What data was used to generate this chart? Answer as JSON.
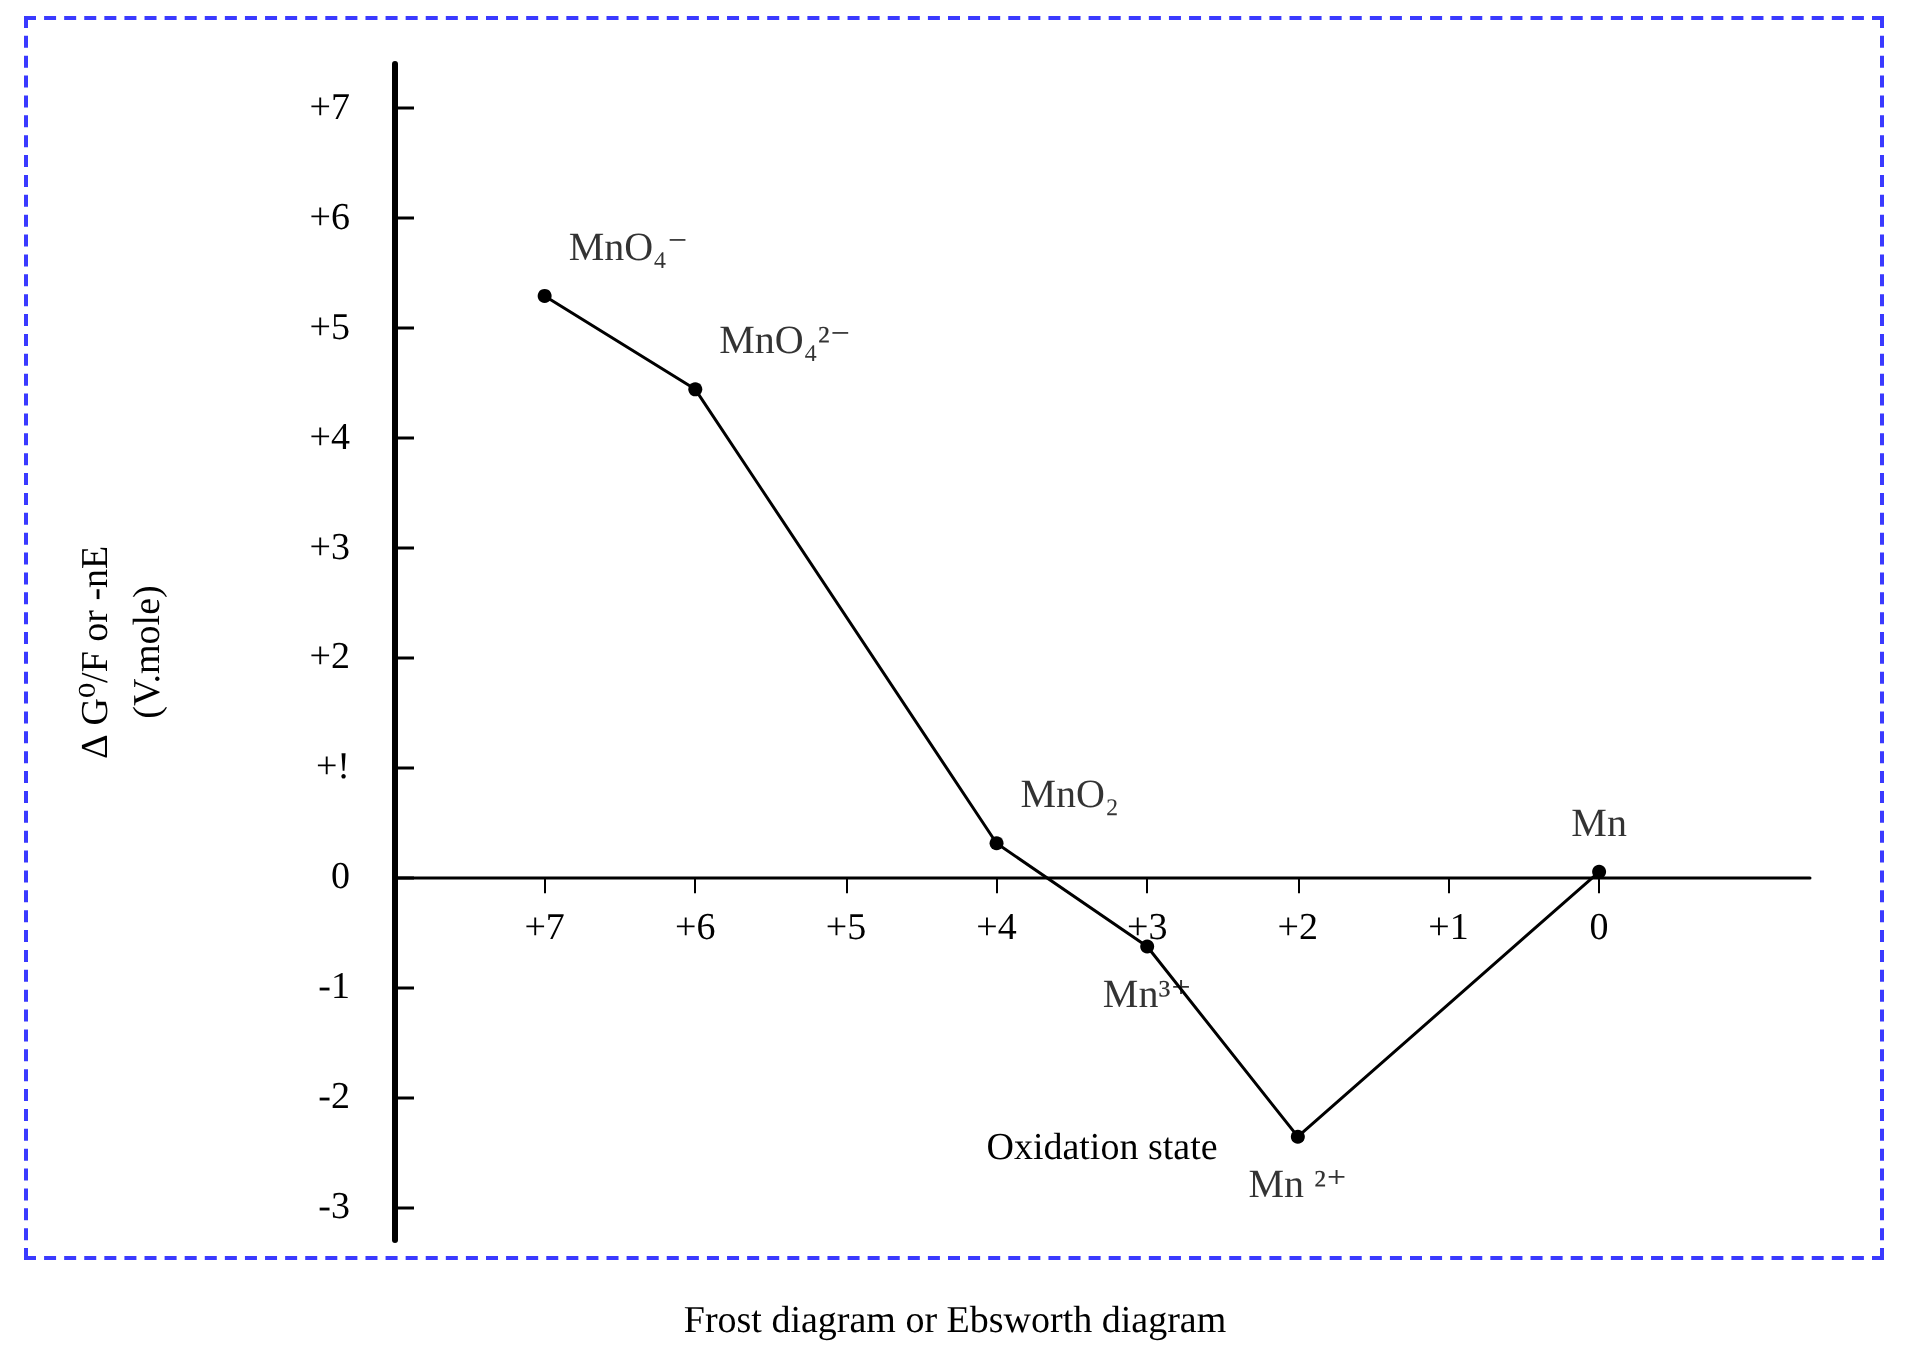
{
  "chart_data": {
    "type": "line",
    "title": "Frost diagram or Ebsworth diagram",
    "xlabel": "Oxidation state",
    "ylabel": "∆ G⁰/F or -nE\n(V.mole)",
    "x": [
      7,
      6,
      4,
      3,
      2,
      0
    ],
    "series": [
      {
        "color": "#000000",
        "values": [
          5.29,
          4.44,
          0.31,
          -0.63,
          -2.36,
          0.05
        ]
      }
    ],
    "xlim": [
      8,
      -1.4
    ],
    "ylim": [
      -3.3,
      7.4
    ],
    "xticks": [
      {
        "value": 7,
        "label": "+7"
      },
      {
        "value": 6,
        "label": "+6"
      },
      {
        "value": 5,
        "label": "+5"
      },
      {
        "value": 4,
        "label": "+4"
      },
      {
        "value": 3,
        "label": "+3"
      },
      {
        "value": 2,
        "label": "+2"
      },
      {
        "value": 1,
        "label": "+1"
      },
      0
    ],
    "yticks": [
      {
        "value": 7,
        "label": "+7"
      },
      {
        "value": 6,
        "label": "+6"
      },
      {
        "value": 5,
        "label": "+5"
      },
      {
        "value": 4,
        "label": "+4"
      },
      {
        "value": 3,
        "label": "+3"
      },
      {
        "value": 2,
        "label": "+2"
      },
      {
        "value": 1,
        "label": "+!"
      },
      0,
      -1,
      -2,
      -3
    ],
    "annotations": [
      {
        "text": "MnO₄⁻",
        "x": 7,
        "y": 5.29
      },
      {
        "text": "MnO₄²⁻",
        "x": 6,
        "y": 4.44
      },
      {
        "text": "MnO₂",
        "x": 4,
        "y": 0.31
      },
      {
        "text": "Mn³⁺",
        "x": 3,
        "y": -0.63
      },
      {
        "text": "Mn ²⁺",
        "x": 2,
        "y": -2.36
      },
      {
        "text": "Mn",
        "x": 0,
        "y": 0.05
      }
    ],
    "grid": false,
    "marker": "circle",
    "line_style": "solid"
  }
}
